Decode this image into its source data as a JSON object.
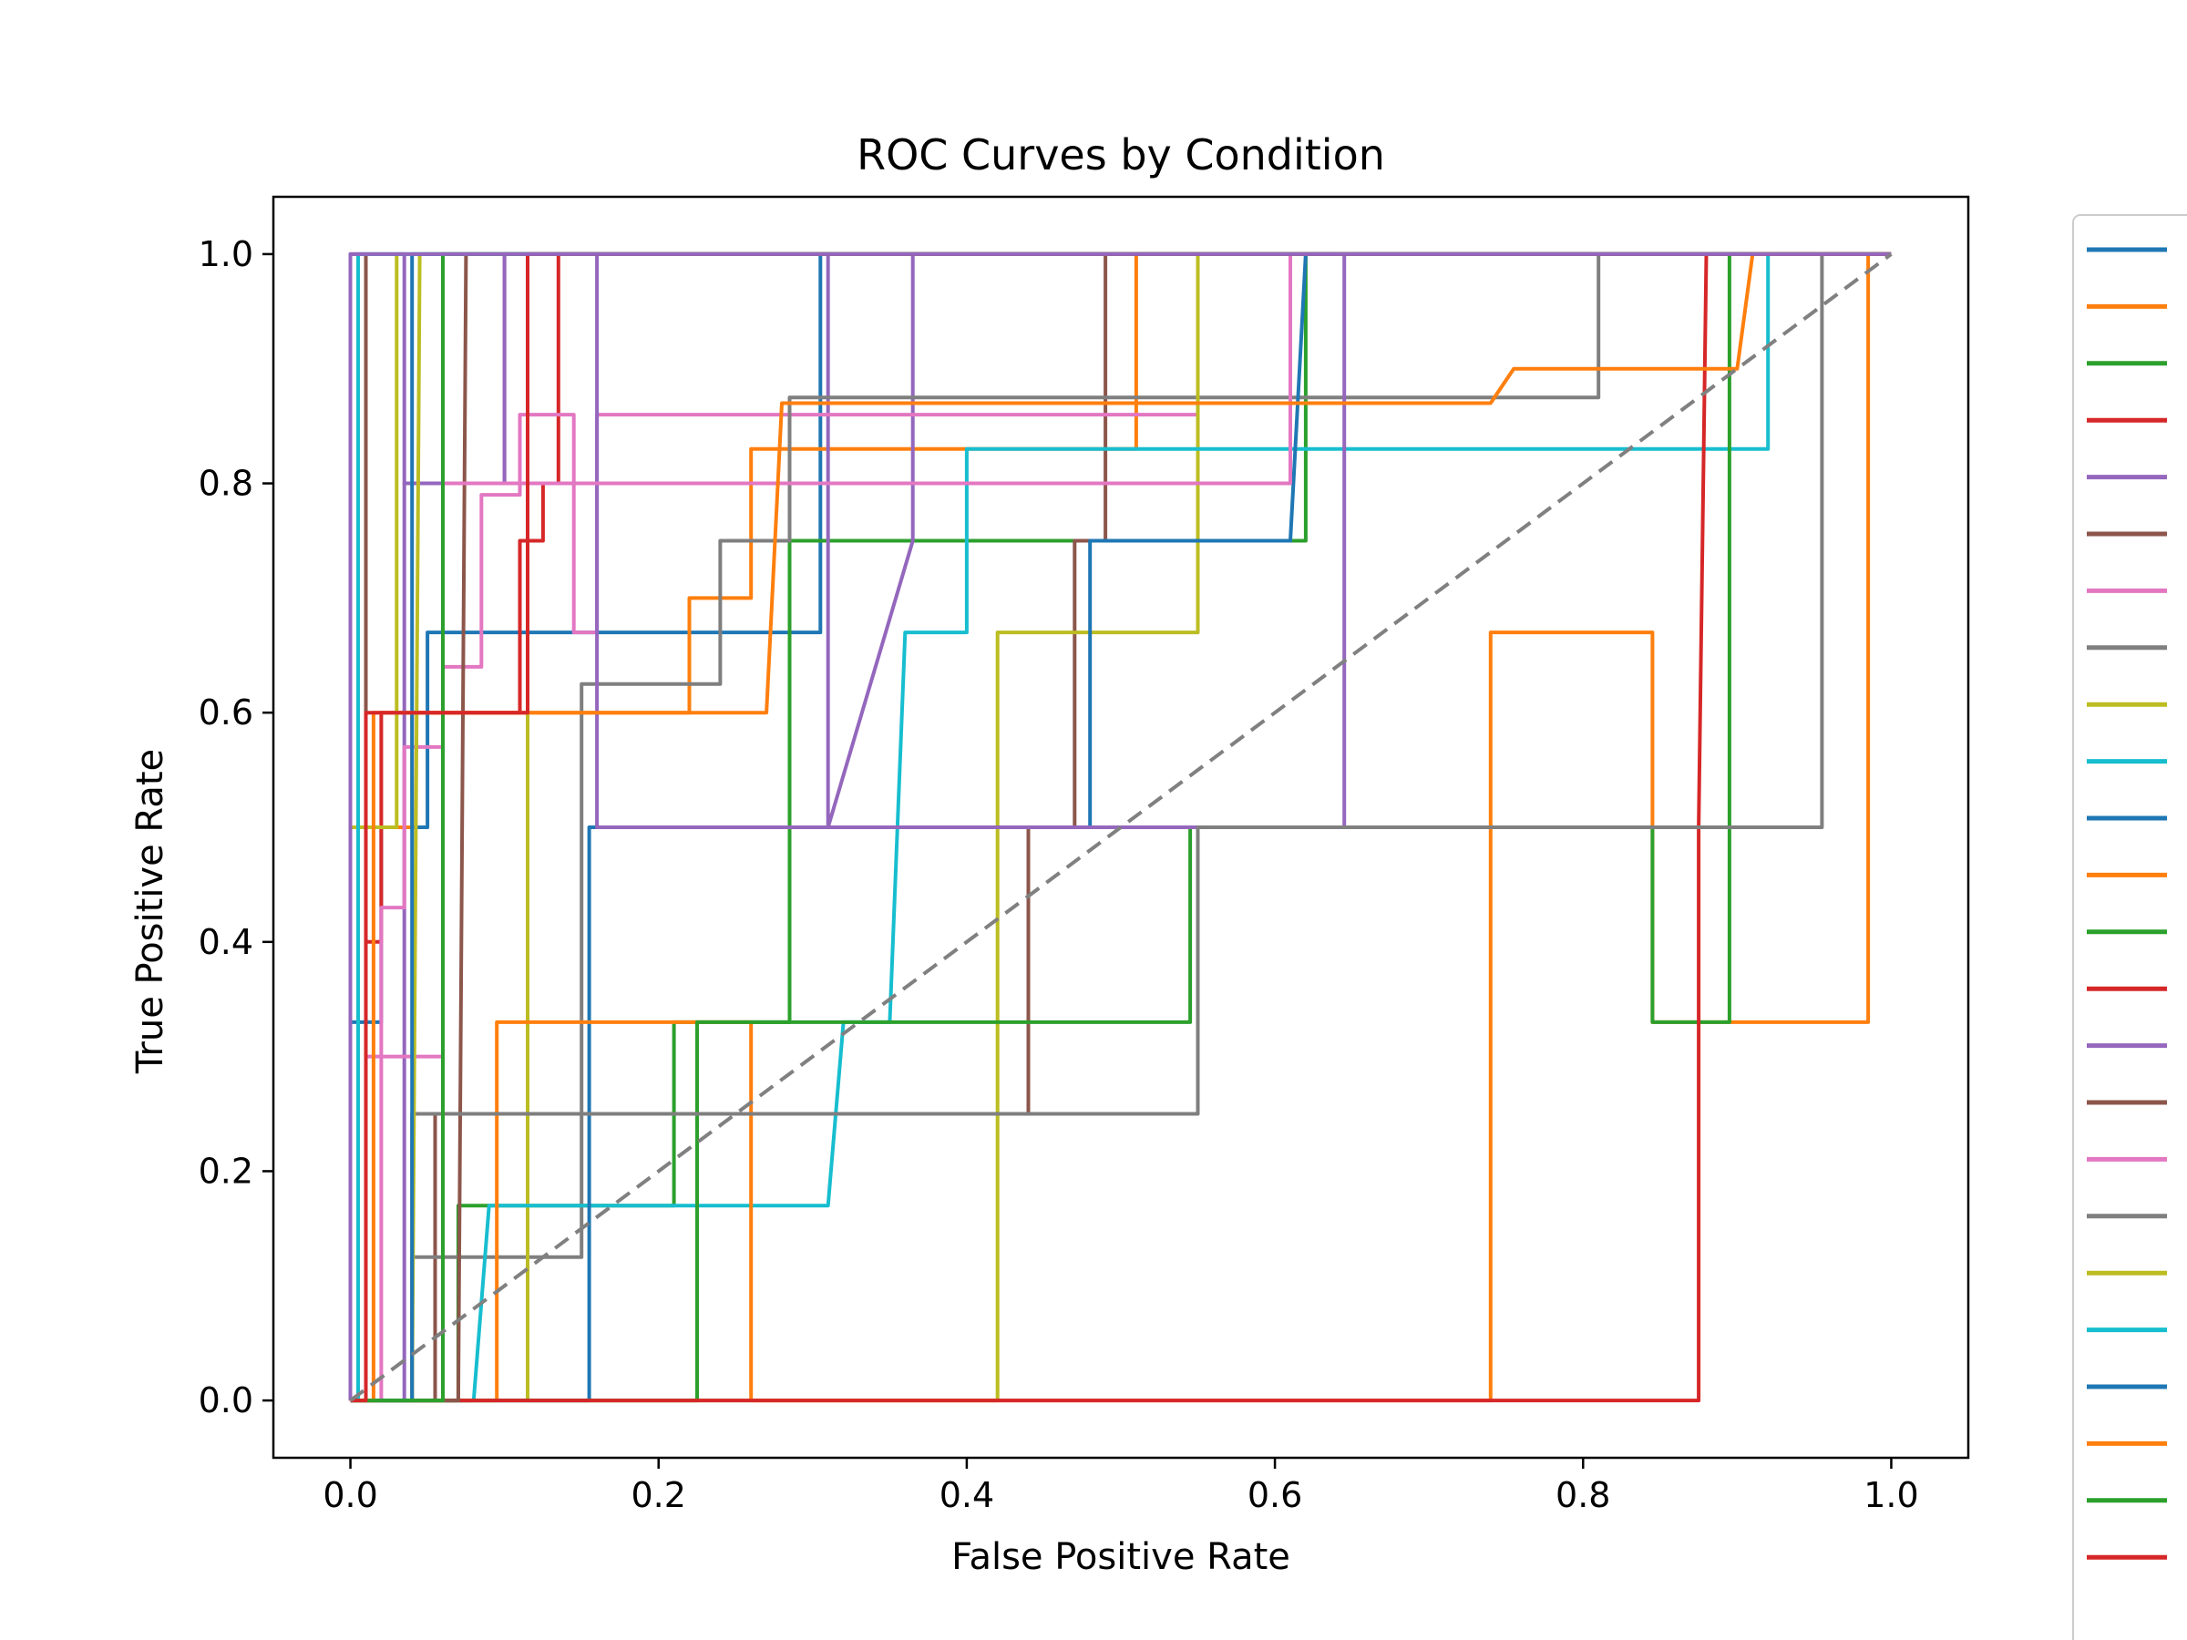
{
  "chart_data": {
    "type": "line",
    "title": "ROC Curves by Condition",
    "xlabel": "False Positive Rate",
    "ylabel": "True Positive Rate",
    "xlim": [
      -0.05,
      1.05
    ],
    "ylim": [
      -0.05,
      1.05
    ],
    "xticks": [
      "0.0",
      "0.2",
      "0.4",
      "0.6",
      "0.8",
      "1.0"
    ],
    "yticks": [
      "0.0",
      "0.2",
      "0.4",
      "0.6",
      "0.8",
      "1.0"
    ],
    "grid": false,
    "legend": {
      "placement": "outside-right",
      "entries": 24
    },
    "diagonal": {
      "x": [
        0,
        1
      ],
      "y": [
        0,
        1
      ],
      "color": "#808080",
      "style": "dashed"
    },
    "series": [
      {
        "color": "#1f77b4",
        "x": [
          0,
          0,
          0.02,
          0.02,
          0.05,
          0.05,
          0.15,
          0.15,
          0.24,
          0.24,
          0.305,
          0.305,
          1
        ],
        "y": [
          0,
          0.33,
          0.33,
          0.5,
          0.5,
          0.67,
          0.67,
          0.67,
          0.67,
          0.67,
          0.67,
          1,
          1
        ]
      },
      {
        "color": "#ff7f0e",
        "x": [
          0,
          0,
          0.04,
          0.04,
          0.09,
          0.09,
          0.22,
          0.22,
          0.26,
          0.26,
          0.51,
          0.51,
          1
        ],
        "y": [
          0,
          0.5,
          0.5,
          0.6,
          0.6,
          0.6,
          0.6,
          0.7,
          0.7,
          0.83,
          0.83,
          1,
          1
        ]
      },
      {
        "color": "#2ca02c",
        "x": [
          0,
          0.07,
          0.07,
          0.21,
          0.21,
          0.285,
          0.285,
          0.62,
          0.62,
          0.68,
          0.68,
          0.71,
          0.71,
          1
        ],
        "y": [
          0,
          0,
          0.17,
          0.17,
          0.33,
          0.33,
          0.75,
          0.75,
          1,
          1,
          1,
          1,
          1,
          1
        ]
      },
      {
        "color": "#d62728",
        "x": [
          0,
          0.01,
          0.01,
          0.02,
          0.02,
          0.11,
          0.11,
          0.125,
          0.125,
          0.135,
          0.135,
          1
        ],
        "y": [
          0,
          0,
          0.4,
          0.4,
          0.6,
          0.6,
          0.75,
          0.75,
          0.8,
          0.8,
          1,
          1
        ]
      },
      {
        "color": "#9467bd",
        "x": [
          0,
          0.035,
          0.035,
          0.1,
          0.1,
          0.31,
          0.31,
          0.365,
          0.365,
          0.45,
          0.45,
          1
        ],
        "y": [
          0,
          0,
          0.8,
          0.8,
          1,
          1,
          0.5,
          0.75,
          1,
          1,
          1,
          1
        ]
      },
      {
        "color": "#8c564b",
        "x": [
          0,
          0.055,
          0.055,
          0.44,
          0.44,
          0.47,
          0.47,
          0.49,
          0.49,
          1
        ],
        "y": [
          0,
          0,
          0.25,
          0.25,
          0.5,
          0.5,
          0.75,
          0.75,
          1,
          1
        ]
      },
      {
        "color": "#e377c2",
        "x": [
          0,
          0.02,
          0.02,
          0.035,
          0.035,
          0.06,
          0.06,
          0.085,
          0.085,
          0.11,
          0.11,
          0.145,
          0.145,
          0.16,
          0.16,
          0.55,
          0.55,
          1
        ],
        "y": [
          0,
          0,
          0.43,
          0.43,
          0.57,
          0.57,
          0.64,
          0.64,
          0.79,
          0.79,
          0.86,
          0.86,
          0.67,
          0.67,
          0.86,
          0.86,
          1,
          1
        ]
      },
      {
        "color": "#7f7f7f",
        "x": [
          0,
          0.04,
          0.04,
          0.15,
          0.15,
          0.24,
          0.24,
          0.285,
          0.285,
          0.81,
          0.81,
          1
        ],
        "y": [
          0,
          0,
          0.125,
          0.125,
          0.625,
          0.625,
          0.75,
          0.75,
          0.875,
          0.875,
          1,
          1
        ]
      },
      {
        "color": "#bcbd22",
        "x": [
          0,
          0,
          0.03,
          0.03,
          0.115,
          0.115,
          0.42,
          0.42,
          0.55,
          0.55,
          1
        ],
        "y": [
          0,
          0.5,
          0.5,
          1,
          1,
          0,
          0,
          0.67,
          0.67,
          1,
          1
        ]
      },
      {
        "color": "#17becf",
        "x": [
          0,
          0.08,
          0.09,
          0.31,
          0.32,
          0.35,
          0.36,
          0.4,
          0.4,
          0.92,
          0.92,
          1
        ],
        "y": [
          0,
          0,
          0.17,
          0.17,
          0.33,
          0.33,
          0.67,
          0.67,
          0.83,
          0.83,
          1,
          1
        ]
      },
      {
        "color": "#1f77b4",
        "x": [
          0,
          0.155,
          0.155,
          0.24,
          0.24,
          0.48,
          0.48,
          0.495,
          0.495,
          0.61,
          0.61,
          0.62,
          1
        ],
        "y": [
          0,
          0,
          0.5,
          0.5,
          0.5,
          0.5,
          0.75,
          0.75,
          0.75,
          0.75,
          0.75,
          1,
          1
        ]
      },
      {
        "color": "#ff7f0e",
        "x": [
          0,
          0.095,
          0.095,
          0.26,
          0.26,
          0.74,
          0.74,
          0.845,
          0.845,
          0.985,
          0.985,
          1
        ],
        "y": [
          0,
          0,
          0.33,
          0.33,
          0,
          0,
          0.67,
          0.67,
          0.33,
          0.33,
          1,
          1
        ]
      },
      {
        "color": "#2ca02c",
        "x": [
          0,
          0.225,
          0.225,
          0.545,
          0.545,
          0.845,
          0.845,
          0.895,
          0.895,
          1
        ],
        "y": [
          0,
          0,
          0.33,
          0.33,
          0.5,
          0.5,
          0.33,
          0.33,
          1,
          1
        ]
      },
      {
        "color": "#d62728",
        "x": [
          0,
          0.875,
          0.875,
          0.88,
          1
        ],
        "y": [
          0,
          0,
          0.5,
          1,
          1
        ]
      },
      {
        "color": "#9467bd",
        "x": [
          0,
          0.01,
          0.01,
          0.035,
          0.035,
          0.1,
          0.1,
          0.16,
          0.16,
          0.645,
          0.645,
          1
        ],
        "y": [
          0,
          0,
          1,
          1,
          0.8,
          0.8,
          1,
          1,
          0.5,
          0.5,
          1,
          1
        ]
      },
      {
        "color": "#8c564b",
        "x": [
          0,
          0,
          0.01,
          0.01,
          0.07,
          0.075,
          0.09,
          0.09,
          1
        ],
        "y": [
          0,
          1,
          1,
          0,
          0,
          1,
          1,
          1,
          1
        ]
      },
      {
        "color": "#e377c2",
        "x": [
          0,
          0.01,
          0.01,
          0.06,
          0.06,
          0.13,
          0.135,
          0.61,
          0.61,
          1
        ],
        "y": [
          0,
          0,
          0.3,
          0.3,
          0.8,
          0.8,
          0.8,
          0.8,
          1,
          1
        ]
      },
      {
        "color": "#7f7f7f",
        "x": [
          0,
          0.04,
          0.04,
          0.55,
          0.55,
          0.955,
          0.955,
          1
        ],
        "y": [
          0,
          0,
          0.25,
          0.25,
          0.5,
          0.5,
          1,
          1
        ]
      },
      {
        "color": "#bcbd22",
        "x": [
          0,
          0.04,
          0.045,
          0.555,
          0.555,
          1
        ],
        "y": [
          0,
          0,
          1,
          1,
          1,
          1
        ]
      },
      {
        "color": "#17becf",
        "x": [
          0,
          0.005,
          0.005,
          1
        ],
        "y": [
          0,
          0,
          1,
          1
        ]
      },
      {
        "color": "#1f77b4",
        "x": [
          0,
          0.04,
          0.04,
          0.165,
          0.165,
          1
        ],
        "y": [
          0,
          0,
          1,
          1,
          1,
          1
        ]
      },
      {
        "color": "#ff7f0e",
        "x": [
          0,
          0.015,
          0.015,
          0.27,
          0.28,
          0.74,
          0.755,
          0.9,
          0.91,
          1
        ],
        "y": [
          0,
          0,
          0.6,
          0.6,
          0.87,
          0.87,
          0.9,
          0.9,
          1,
          1
        ]
      },
      {
        "color": "#2ca02c",
        "x": [
          0,
          0.06,
          0.06,
          0.755,
          0.76,
          1
        ],
        "y": [
          0,
          0,
          1,
          1,
          1,
          1
        ]
      },
      {
        "color": "#d62728",
        "x": [
          0,
          0.01,
          0.01,
          0.115,
          0.115,
          1
        ],
        "y": [
          0,
          0,
          0.6,
          0.6,
          1,
          1
        ]
      },
      {
        "color": "#9467bd",
        "x": [
          0,
          0,
          1
        ],
        "y": [
          0,
          1,
          1
        ]
      }
    ]
  }
}
